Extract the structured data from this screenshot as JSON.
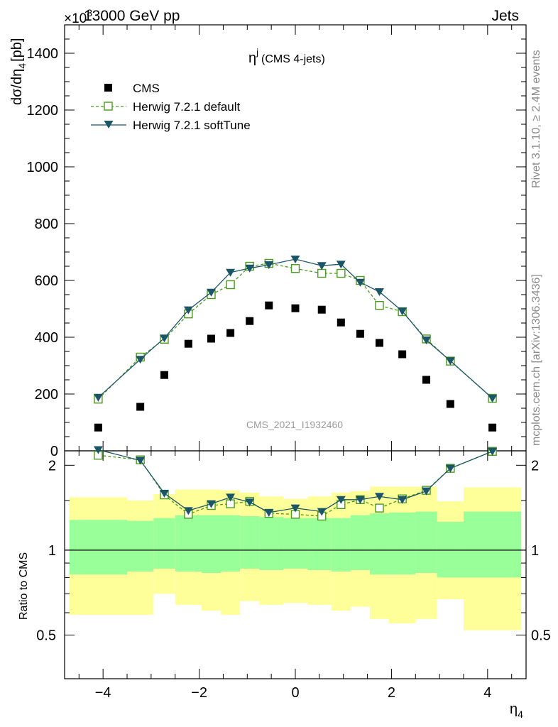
{
  "header": {
    "left": "13000 GeV pp",
    "right": "Jets",
    "multiplier": "×10",
    "multiplier_exp": "3"
  },
  "side_labels": {
    "rivet": "Rivet 3.1.10, ≥ 2.4M events",
    "mcplots": "mcplots.cern.ch [arXiv:1306.3436]"
  },
  "watermark": "CMS_2021_I1932460",
  "chart_data": [
    {
      "type": "scatter",
      "title": "η",
      "title_sup": "j",
      "title_suffix": "(CMS 4-jets)",
      "ylabel": "dσ/dη",
      "ylabel_sub": "4",
      "ylabel_unit": "[pb]",
      "xlim": [
        -4.8,
        4.8
      ],
      "ylim": [
        0,
        1500
      ],
      "yticks": [
        0,
        200,
        400,
        600,
        800,
        1000,
        1200,
        1400
      ],
      "ytick_labels": [
        "0",
        "200",
        "400",
        "600",
        "800",
        "1000",
        "1200",
        "1400"
      ],
      "x": [
        -4.1,
        -3.225,
        -2.725,
        -2.225,
        -1.75,
        -1.35,
        -0.95,
        -0.55,
        0.0,
        0.55,
        0.95,
        1.35,
        1.75,
        2.225,
        2.725,
        3.225,
        4.1
      ],
      "series": [
        {
          "name": "CMS",
          "style": "square-filled",
          "color": "#000000",
          "values": [
            82,
            155,
            267,
            377,
            395,
            415,
            457,
            512,
            502,
            497,
            452,
            412,
            380,
            340,
            250,
            165,
            82
          ]
        },
        {
          "name": "Herwig 7.2.1 default",
          "style": "square-open-dashed",
          "color": "#4a9a1c",
          "values": [
            182,
            330,
            393,
            482,
            550,
            585,
            650,
            660,
            642,
            625,
            625,
            600,
            512,
            490,
            394,
            316,
            185
          ]
        },
        {
          "name": "Herwig 7.2.1 softTune",
          "style": "triangle-down-solid",
          "color": "#1b5566",
          "values": [
            188,
            322,
            397,
            496,
            558,
            628,
            643,
            655,
            675,
            652,
            657,
            593,
            560,
            492,
            390,
            317,
            185
          ]
        }
      ],
      "legend_position": "top-left"
    },
    {
      "type": "scatter",
      "ylabel": "Ratio to CMS",
      "xlabel": "η",
      "xlabel_sub": "4",
      "xlim": [
        -4.8,
        4.8
      ],
      "ylim": [
        0.35,
        2.25
      ],
      "yticks": [
        0.5,
        1,
        2
      ],
      "ytick_labels": [
        "0.5",
        "1",
        "2"
      ],
      "xticks": [
        -4,
        -2,
        0,
        2,
        4
      ],
      "xtick_labels": [
        "−4",
        "−2",
        "0",
        "2",
        "4"
      ],
      "bin_edges": [
        -4.7,
        -3.5,
        -2.95,
        -2.5,
        -1.95,
        -1.55,
        -1.15,
        -0.75,
        -0.25,
        0.25,
        0.75,
        1.15,
        1.55,
        1.95,
        2.5,
        2.95,
        3.5,
        4.7
      ],
      "band_yellow_low": [
        0.59,
        0.59,
        0.7,
        0.64,
        0.61,
        0.59,
        0.66,
        0.64,
        0.65,
        0.64,
        0.61,
        0.63,
        0.57,
        0.55,
        0.57,
        0.67,
        0.52
      ],
      "band_yellow_high": [
        1.54,
        1.5,
        1.58,
        1.64,
        1.64,
        1.63,
        1.6,
        1.55,
        1.52,
        1.55,
        1.6,
        1.62,
        1.68,
        1.68,
        1.68,
        1.49,
        1.67
      ],
      "band_green_low": [
        0.82,
        0.84,
        0.86,
        0.84,
        0.83,
        0.84,
        0.86,
        0.85,
        0.86,
        0.85,
        0.84,
        0.85,
        0.82,
        0.82,
        0.83,
        0.8,
        0.8
      ],
      "band_green_high": [
        1.28,
        1.27,
        1.3,
        1.33,
        1.33,
        1.33,
        1.32,
        1.31,
        1.3,
        1.3,
        1.3,
        1.33,
        1.35,
        1.36,
        1.37,
        1.26,
        1.37
      ],
      "band_colors": {
        "yellow": "#ffff99",
        "green": "#99ff99"
      },
      "x": [
        -4.1,
        -3.225,
        -2.725,
        -2.225,
        -1.75,
        -1.35,
        -0.95,
        -0.55,
        0.0,
        0.55,
        0.95,
        1.35,
        1.75,
        2.225,
        2.725,
        3.225,
        4.1
      ],
      "series": [
        {
          "name": "Herwig 7.2.1 default",
          "style": "square-open-dashed",
          "color": "#4a9a1c",
          "values": [
            2.17,
            2.09,
            1.57,
            1.34,
            1.44,
            1.46,
            1.49,
            1.35,
            1.34,
            1.32,
            1.45,
            1.51,
            1.41,
            1.52,
            1.63,
            1.95,
            2.24
          ]
        },
        {
          "name": "Herwig 7.2.1 softTune",
          "style": "triangle-down-solid",
          "color": "#1b5566",
          "values": [
            2.27,
            2.08,
            1.59,
            1.38,
            1.46,
            1.54,
            1.48,
            1.36,
            1.41,
            1.37,
            1.51,
            1.51,
            1.55,
            1.51,
            1.62,
            1.95,
            2.24
          ]
        }
      ]
    }
  ]
}
